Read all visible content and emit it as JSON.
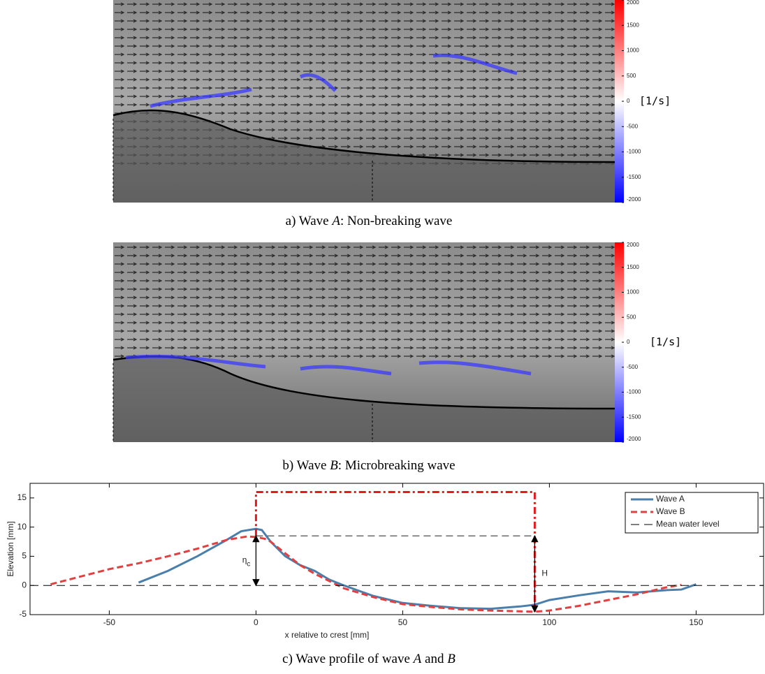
{
  "chart_data": [
    {
      "type": "image",
      "caption": [
        "a) Wave ",
        "A",
        ": Non-breaking wave"
      ],
      "colorbar": {
        "lim": [
          -2000,
          2000
        ],
        "ticks": [
          2000,
          1500,
          1000,
          500,
          0,
          -500,
          -1000,
          -1500,
          -2000
        ],
        "label": "[1/s]",
        "colors": [
          "#0000ff",
          "#ffffff",
          "#ff0000"
        ]
      }
    },
    {
      "type": "image",
      "caption": [
        "b) Wave ",
        "B",
        ": Microbreaking wave"
      ],
      "colorbar": {
        "lim": [
          -2000,
          2000
        ],
        "ticks": [
          2000,
          1500,
          1000,
          500,
          0,
          -500,
          -1000,
          -1500,
          -2000
        ],
        "label": "[1/s]",
        "colors": [
          "#0000ff",
          "#ffffff",
          "#ff0000"
        ]
      }
    },
    {
      "type": "line",
      "caption": [
        "c) Wave profile of wave ",
        "A",
        " and ",
        "B"
      ],
      "xlabel": "x relative to crest [mm]",
      "ylabel": "Elevation [mm]",
      "xlim": [
        -77,
        173
      ],
      "ylim": [
        -5,
        17.5
      ],
      "xticks": [
        -50,
        0,
        50,
        100,
        150
      ],
      "yticks": [
        -5,
        0,
        5,
        10,
        15
      ],
      "series": [
        {
          "name": "Wave A",
          "color": "#4a7fab",
          "dash": "solid",
          "x": [
            -40,
            -30,
            -20,
            -10,
            -5,
            0,
            2,
            5,
            10,
            15,
            20,
            25,
            30,
            40,
            50,
            60,
            70,
            80,
            90,
            95,
            100,
            110,
            120,
            130,
            140,
            145,
            150
          ],
          "values": [
            0.5,
            2.5,
            5,
            7.8,
            9.3,
            9.7,
            9.5,
            7.5,
            5,
            3.5,
            2.5,
            1,
            0,
            -1.8,
            -3,
            -3.5,
            -3.9,
            -4,
            -3.6,
            -3.3,
            -2.5,
            -1.7,
            -1,
            -1.2,
            -0.8,
            -0.7,
            0.2
          ]
        },
        {
          "name": "Wave B",
          "color": "#e04040",
          "dash": "dashed",
          "x": [
            -70,
            -60,
            -50,
            -40,
            -30,
            -20,
            -10,
            -3,
            0,
            3,
            5,
            10,
            15,
            20,
            30,
            40,
            50,
            60,
            70,
            80,
            95,
            100,
            110,
            120,
            130,
            140,
            145
          ],
          "values": [
            0.2,
            1.5,
            2.8,
            3.8,
            5,
            6.3,
            7.8,
            8.4,
            8.3,
            8,
            7.5,
            5.5,
            3.5,
            2,
            -0.5,
            -2,
            -3.2,
            -3.7,
            -4.1,
            -4.3,
            -4.5,
            -4.3,
            -3.5,
            -2.5,
            -1.5,
            -0.3,
            0.1
          ]
        },
        {
          "name": "Mean water level",
          "color": "#000000",
          "dash": "longdash",
          "x": [
            -77,
            173
          ],
          "values": [
            0,
            0
          ]
        }
      ],
      "crest_level": {
        "x": [
          0,
          95
        ],
        "values": [
          8.5,
          8.5
        ]
      },
      "outline": {
        "x": [
          0,
          0,
          95,
          95
        ],
        "values": [
          8.5,
          16,
          16,
          -4.5
        ],
        "color": "#e41a1c"
      },
      "annotations": [
        {
          "text": "η",
          "sub": "c",
          "x": 0,
          "y": [
            0,
            8.5
          ]
        },
        {
          "text": "H",
          "x": 95,
          "y": [
            -4.5,
            8.5
          ]
        }
      ],
      "legend": "upper right"
    }
  ]
}
